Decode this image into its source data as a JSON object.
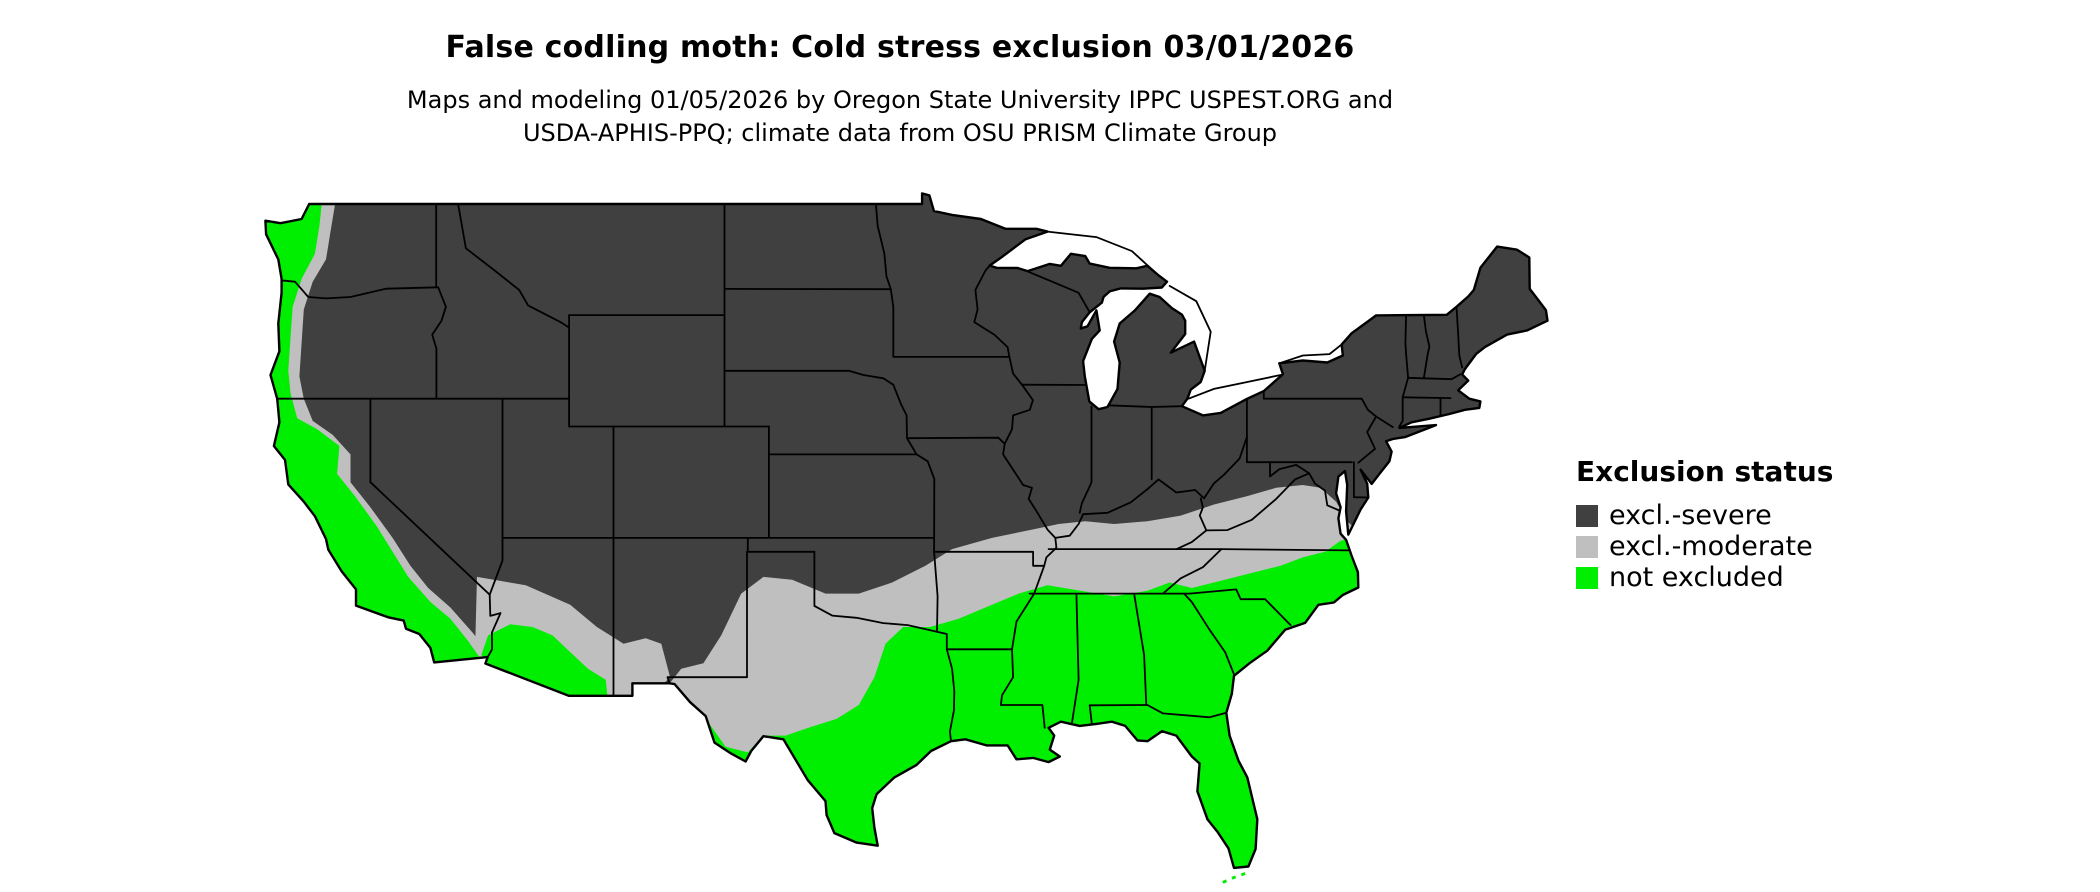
{
  "title": "False codling moth: Cold stress exclusion 03/01/2026",
  "subtitle": [
    "Maps and modeling 01/05/2026 by Oregon State University IPPC USPEST.ORG and",
    "USDA-APHIS-PPQ; climate data from OSU PRISM Climate Group"
  ],
  "legend": {
    "title": "Exclusion status",
    "items": [
      {
        "label": "excl.-severe",
        "color": "#404040"
      },
      {
        "label": "excl.-moderate",
        "color": "#bfbfbf"
      },
      {
        "label": "not excluded",
        "color": "#00ee00"
      }
    ]
  },
  "map": {
    "area": "Contiguous United States",
    "type": "choropleth",
    "background": "#ffffff",
    "border_color": "#000000"
  }
}
